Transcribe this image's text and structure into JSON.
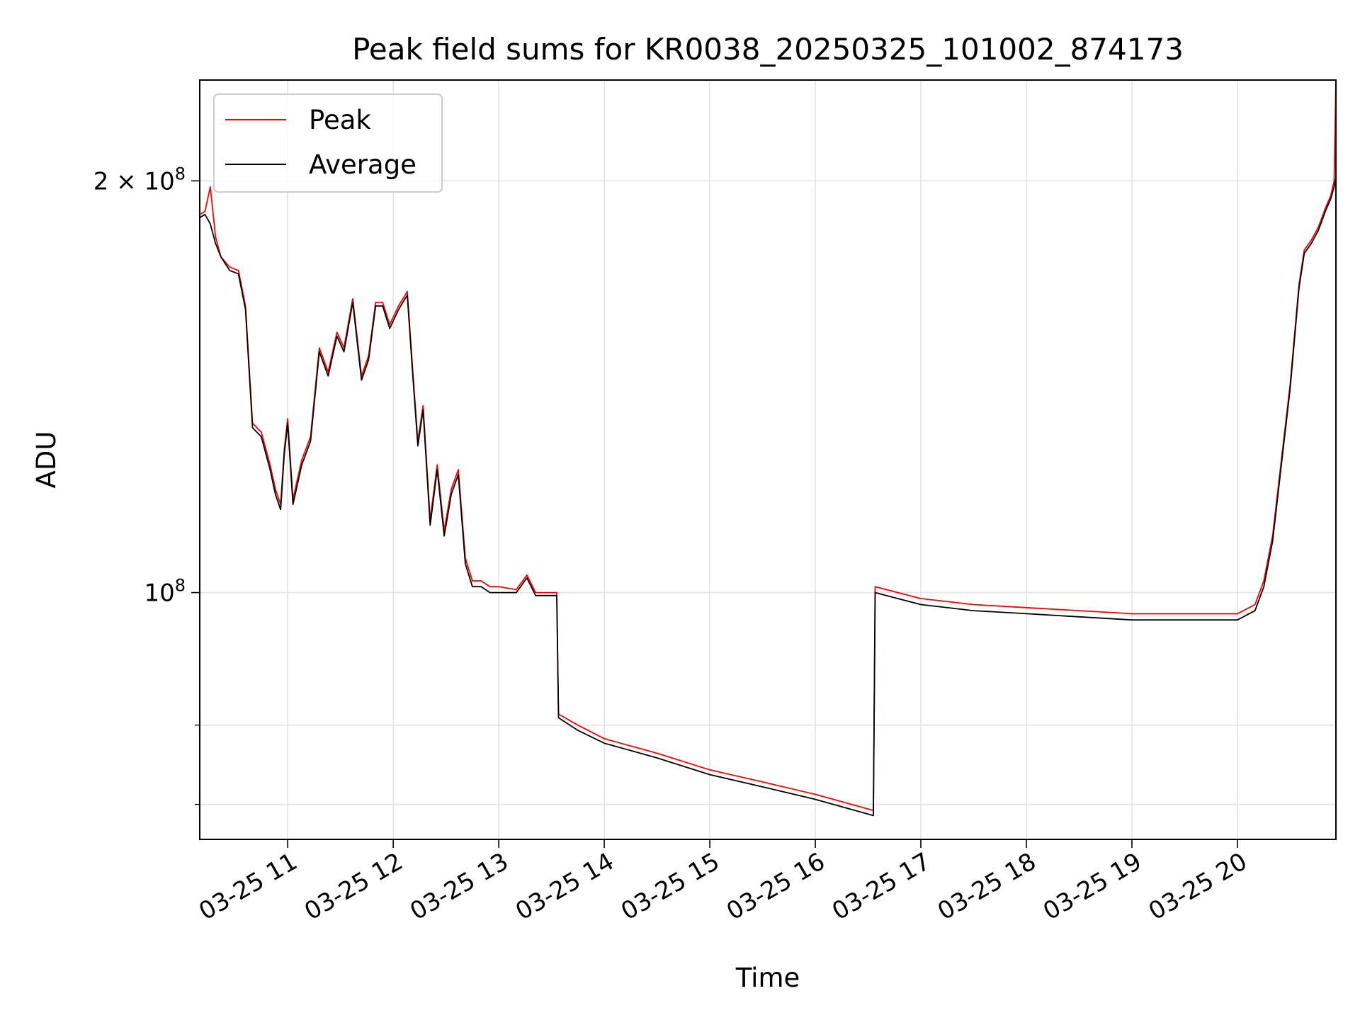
{
  "chart_data": {
    "type": "line",
    "title": "Peak field sums for KR0038_20250325_101002_874173",
    "xlabel": "Time",
    "ylabel": "ADU",
    "y_scale": "log",
    "ylim": [
      66000000,
      237000000
    ],
    "xlim": [
      "2025-03-25 10:10",
      "2025-03-25 20:56"
    ],
    "x_tick_labels": [
      "03-25 11",
      "03-25 12",
      "03-25 13",
      "03-25 14",
      "03-25 15",
      "03-25 16",
      "03-25 17",
      "03-25 18",
      "03-25 19",
      "03-25 20"
    ],
    "x_ticks": [
      "2025-03-25 11:00",
      "2025-03-25 12:00",
      "2025-03-25 13:00",
      "2025-03-25 14:00",
      "2025-03-25 15:00",
      "2025-03-25 16:00",
      "2025-03-25 17:00",
      "2025-03-25 18:00",
      "2025-03-25 19:00",
      "2025-03-25 20:00"
    ],
    "y_ticks": [
      {
        "value": 200000000,
        "label": "2 × 10",
        "exp": "8"
      },
      {
        "value": 100000000,
        "label": "10",
        "exp": "8"
      }
    ],
    "y_minor_ticks": [
      70000000,
      80000000
    ],
    "grid": true,
    "legend": {
      "position": "top-left",
      "entries": [
        "Peak",
        "Average"
      ]
    },
    "series": [
      {
        "name": "Peak",
        "color": "#ff0000",
        "x": [
          "2025-03-25 10:10",
          "2025-03-25 10:13",
          "2025-03-25 10:16",
          "2025-03-25 10:19",
          "2025-03-25 10:22",
          "2025-03-25 10:27",
          "2025-03-25 10:32",
          "2025-03-25 10:36",
          "2025-03-25 10:40",
          "2025-03-25 10:45",
          "2025-03-25 10:50",
          "2025-03-25 10:53",
          "2025-03-25 10:56",
          "2025-03-25 10:58",
          "2025-03-25 11:00",
          "2025-03-25 11:03",
          "2025-03-25 11:08",
          "2025-03-25 11:13",
          "2025-03-25 11:18",
          "2025-03-25 11:23",
          "2025-03-25 11:28",
          "2025-03-25 11:32",
          "2025-03-25 11:37",
          "2025-03-25 11:42",
          "2025-03-25 11:46",
          "2025-03-25 11:50",
          "2025-03-25 11:54",
          "2025-03-25 11:58",
          "2025-03-25 12:03",
          "2025-03-25 12:08",
          "2025-03-25 12:11",
          "2025-03-25 12:14",
          "2025-03-25 12:17",
          "2025-03-25 12:21",
          "2025-03-25 12:25",
          "2025-03-25 12:29",
          "2025-03-25 12:33",
          "2025-03-25 12:37",
          "2025-03-25 12:41",
          "2025-03-25 12:45",
          "2025-03-25 12:50",
          "2025-03-25 12:55",
          "2025-03-25 13:00",
          "2025-03-25 13:10",
          "2025-03-25 13:16",
          "2025-03-25 13:21",
          "2025-03-25 13:26",
          "2025-03-25 13:33",
          "2025-03-25 13:34",
          "2025-03-25 13:45",
          "2025-03-25 14:00",
          "2025-03-25 14:30",
          "2025-03-25 15:00",
          "2025-03-25 15:30",
          "2025-03-25 16:00",
          "2025-03-25 16:33",
          "2025-03-25 16:34",
          "2025-03-25 17:00",
          "2025-03-25 17:30",
          "2025-03-25 18:00",
          "2025-03-25 18:30",
          "2025-03-25 19:00",
          "2025-03-25 19:30",
          "2025-03-25 20:00",
          "2025-03-25 20:10",
          "2025-03-25 20:15",
          "2025-03-25 20:20",
          "2025-03-25 20:25",
          "2025-03-25 20:30",
          "2025-03-25 20:35",
          "2025-03-25 20:38",
          "2025-03-25 20:42",
          "2025-03-25 20:46",
          "2025-03-25 20:50",
          "2025-03-25 20:53",
          "2025-03-25 20:55",
          "2025-03-25 20:56"
        ],
        "values": [
          189000000,
          190000000,
          198000000,
          182000000,
          176000000,
          173000000,
          172000000,
          162000000,
          133000000,
          131000000,
          124000000,
          119000000,
          116000000,
          127000000,
          134000000,
          117000000,
          125000000,
          130000000,
          151000000,
          145000000,
          155000000,
          151000000,
          164000000,
          144000000,
          149000000,
          163000000,
          163000000,
          157000000,
          162000000,
          166000000,
          146000000,
          129000000,
          137000000,
          113000000,
          124000000,
          111000000,
          119000000,
          123000000,
          106000000,
          102000000,
          102000000,
          101000000,
          101000000,
          100500000,
          103000000,
          100000000,
          100000000,
          100000000,
          81500000,
          80000000,
          78200000,
          76300000,
          74200000,
          72700000,
          71200000,
          69300000,
          101000000,
          99000000,
          98000000,
          97500000,
          97000000,
          96500000,
          96500000,
          96500000,
          98000000,
          102000000,
          110000000,
          125000000,
          142000000,
          168000000,
          178000000,
          181000000,
          185000000,
          191000000,
          195000000,
          200000000,
          237000000
        ]
      },
      {
        "name": "Average",
        "color": "#000000",
        "x": [
          "2025-03-25 10:10",
          "2025-03-25 10:13",
          "2025-03-25 10:16",
          "2025-03-25 10:19",
          "2025-03-25 10:22",
          "2025-03-25 10:27",
          "2025-03-25 10:32",
          "2025-03-25 10:36",
          "2025-03-25 10:40",
          "2025-03-25 10:45",
          "2025-03-25 10:50",
          "2025-03-25 10:53",
          "2025-03-25 10:56",
          "2025-03-25 10:58",
          "2025-03-25 11:00",
          "2025-03-25 11:03",
          "2025-03-25 11:08",
          "2025-03-25 11:13",
          "2025-03-25 11:18",
          "2025-03-25 11:23",
          "2025-03-25 11:28",
          "2025-03-25 11:32",
          "2025-03-25 11:37",
          "2025-03-25 11:42",
          "2025-03-25 11:46",
          "2025-03-25 11:50",
          "2025-03-25 11:54",
          "2025-03-25 11:58",
          "2025-03-25 12:03",
          "2025-03-25 12:08",
          "2025-03-25 12:11",
          "2025-03-25 12:14",
          "2025-03-25 12:17",
          "2025-03-25 12:21",
          "2025-03-25 12:25",
          "2025-03-25 12:29",
          "2025-03-25 12:33",
          "2025-03-25 12:37",
          "2025-03-25 12:41",
          "2025-03-25 12:45",
          "2025-03-25 12:50",
          "2025-03-25 12:55",
          "2025-03-25 13:00",
          "2025-03-25 13:10",
          "2025-03-25 13:16",
          "2025-03-25 13:21",
          "2025-03-25 13:26",
          "2025-03-25 13:33",
          "2025-03-25 13:34",
          "2025-03-25 13:45",
          "2025-03-25 14:00",
          "2025-03-25 14:30",
          "2025-03-25 15:00",
          "2025-03-25 15:30",
          "2025-03-25 16:00",
          "2025-03-25 16:33",
          "2025-03-25 16:34",
          "2025-03-25 17:00",
          "2025-03-25 17:30",
          "2025-03-25 18:00",
          "2025-03-25 18:30",
          "2025-03-25 19:00",
          "2025-03-25 19:30",
          "2025-03-25 20:00",
          "2025-03-25 20:10",
          "2025-03-25 20:15",
          "2025-03-25 20:20",
          "2025-03-25 20:25",
          "2025-03-25 20:30",
          "2025-03-25 20:35",
          "2025-03-25 20:38",
          "2025-03-25 20:42",
          "2025-03-25 20:46",
          "2025-03-25 20:50",
          "2025-03-25 20:53",
          "2025-03-25 20:55",
          "2025-03-25 20:56"
        ],
        "values": [
          188000000,
          189000000,
          186000000,
          180000000,
          176000000,
          172000000,
          171000000,
          161000000,
          132000000,
          130000000,
          123000000,
          118000000,
          115000000,
          126000000,
          133000000,
          116000000,
          124000000,
          129000000,
          150000000,
          144000000,
          154000000,
          150000000,
          163000000,
          143000000,
          148000000,
          162000000,
          162000000,
          156000000,
          161000000,
          165000000,
          145000000,
          128000000,
          136000000,
          112000000,
          123000000,
          110000000,
          118000000,
          122000000,
          105000000,
          101000000,
          101000000,
          100000000,
          100000000,
          100000000,
          102500000,
          99500000,
          99500000,
          99500000,
          81000000,
          79300000,
          77600000,
          75700000,
          73600000,
          72100000,
          70600000,
          68700000,
          100000000,
          98000000,
          97000000,
          96500000,
          96000000,
          95500000,
          95500000,
          95500000,
          97000000,
          101000000,
          109000000,
          124000000,
          141000000,
          167000000,
          177000000,
          180000000,
          184000000,
          190000000,
          194000000,
          198000000,
          201000000
        ]
      }
    ]
  }
}
